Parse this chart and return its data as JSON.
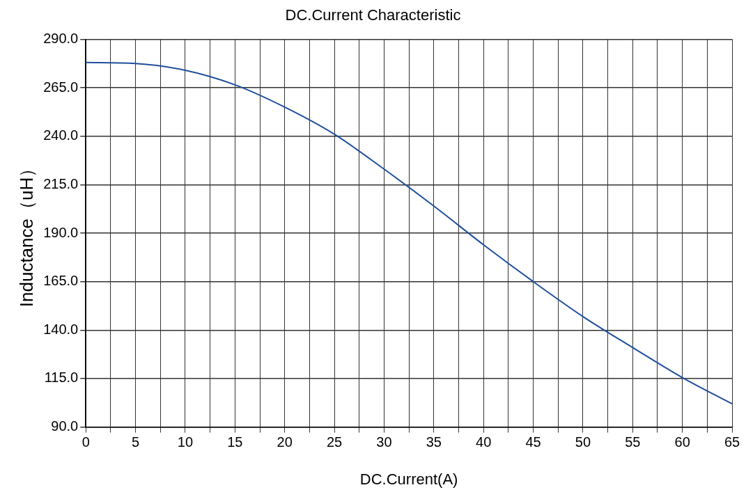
{
  "chart_data": {
    "type": "line",
    "title": "DC.Current Characteristic",
    "xlabel": "DC.Current(A)",
    "ylabel": "Inductance（uH）",
    "x": [
      0,
      5,
      10,
      15,
      20,
      25,
      30,
      35,
      40,
      45,
      50,
      55,
      60,
      65
    ],
    "series": [
      {
        "color": "#1f4e9c",
        "values": [
          278,
          277.5,
          274,
          266.5,
          255,
          241,
          223,
          204,
          184,
          165,
          147,
          131,
          115.5,
          102
        ]
      }
    ],
    "xlim": [
      0,
      65
    ],
    "xticks": [
      0,
      {
        "value": 2.5,
        "label": null
      },
      5,
      {
        "value": 7.5,
        "label": null
      },
      10,
      {
        "value": 12.5,
        "label": null
      },
      15,
      {
        "value": 17.5,
        "label": null
      },
      20,
      {
        "value": 22.5,
        "label": null
      },
      25,
      {
        "value": 27.5,
        "label": null
      },
      30,
      {
        "value": 32.5,
        "label": null
      },
      35,
      {
        "value": 37.5,
        "label": null
      },
      40,
      {
        "value": 42.5,
        "label": null
      },
      45,
      {
        "value": 47.5,
        "label": null
      },
      50,
      {
        "value": 52.5,
        "label": null
      },
      55,
      {
        "value": 57.5,
        "label": null
      },
      60,
      {
        "value": 62.5,
        "label": null
      },
      65
    ],
    "ylim": [
      90,
      290
    ],
    "yticks": [
      {
        "value": 90,
        "label": "90.0"
      },
      {
        "value": 115,
        "label": "115.0"
      },
      {
        "value": 140,
        "label": "140.0"
      },
      {
        "value": 165,
        "label": "165.0"
      },
      {
        "value": 190,
        "label": "190.0"
      },
      {
        "value": 215,
        "label": "215.0"
      },
      {
        "value": 240,
        "label": "240.0"
      },
      {
        "value": 265,
        "label": "265.0"
      },
      {
        "value": 290,
        "label": "290.0"
      }
    ],
    "grid": true,
    "legend": false,
    "marker": "none",
    "line_style": "solid"
  }
}
